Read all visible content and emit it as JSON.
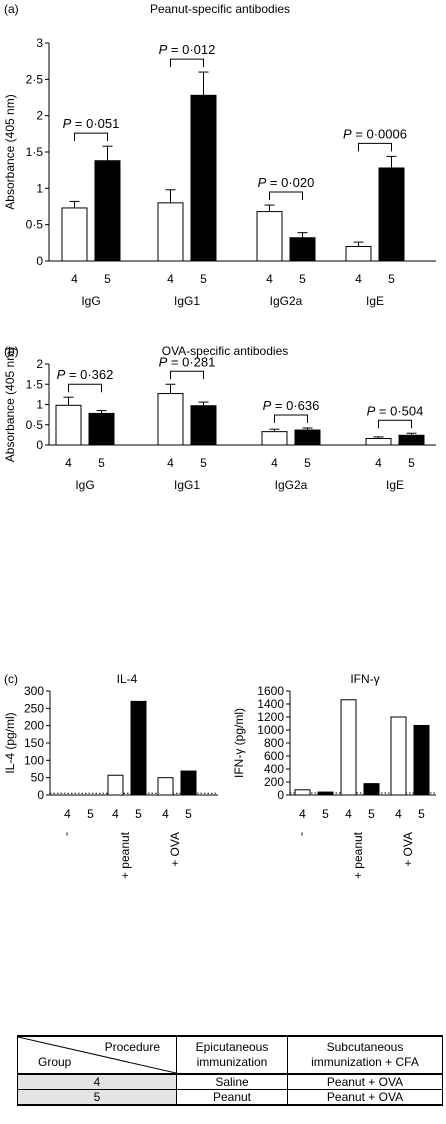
{
  "chart_data": [
    {
      "panel_label": "(a)",
      "type": "bar",
      "title": "Peanut-specific antibodies",
      "ylabel": "Absorbance (405 nm)",
      "ylim": [
        0,
        3
      ],
      "yticks": [
        "0",
        "0·5",
        "1",
        "1·5",
        "2",
        "2·5",
        "3"
      ],
      "groups": [
        {
          "label": "IgG",
          "values": [
            0.73,
            1.38
          ],
          "errors": [
            0.09,
            0.2
          ],
          "categories": [
            "4",
            "5"
          ],
          "p": "P = 0·051"
        },
        {
          "label": "IgG1",
          "values": [
            0.8,
            2.28
          ],
          "errors": [
            0.18,
            0.32
          ],
          "categories": [
            "4",
            "5"
          ],
          "p": "P = 0·012"
        },
        {
          "label": "IgG2a",
          "values": [
            0.68,
            0.32
          ],
          "errors": [
            0.09,
            0.07
          ],
          "categories": [
            "4",
            "5"
          ],
          "p": "P = 0·020"
        },
        {
          "label": "IgE",
          "values": [
            0.2,
            1.28
          ],
          "errors": [
            0.06,
            0.16
          ],
          "categories": [
            "4",
            "5"
          ],
          "p": "P = 0·0006"
        }
      ],
      "colors": [
        "#ffffff",
        "#000000"
      ]
    },
    {
      "panel_label": "(b)",
      "type": "bar",
      "title": "OVA-specific antibodies",
      "ylabel": "Absorbance (405 nm)",
      "ylim": [
        0,
        2
      ],
      "yticks": [
        "0",
        "0·5",
        "1",
        "1·5",
        "2"
      ],
      "groups": [
        {
          "label": "IgG",
          "values": [
            0.98,
            0.78
          ],
          "errors": [
            0.2,
            0.07
          ],
          "categories": [
            "4",
            "5"
          ],
          "p": "P = 0·362"
        },
        {
          "label": "IgG1",
          "values": [
            1.27,
            0.97
          ],
          "errors": [
            0.23,
            0.09
          ],
          "categories": [
            "4",
            "5"
          ],
          "p": "P = 0·281"
        },
        {
          "label": "IgG2a",
          "values": [
            0.33,
            0.37
          ],
          "errors": [
            0.06,
            0.05
          ],
          "categories": [
            "4",
            "5"
          ],
          "p": "P = 0·636"
        },
        {
          "label": "IgE",
          "values": [
            0.16,
            0.24
          ],
          "errors": [
            0.04,
            0.05
          ],
          "categories": [
            "4",
            "5"
          ],
          "p": "P = 0·504"
        }
      ],
      "colors": [
        "#ffffff",
        "#000000"
      ]
    },
    {
      "panel_label": "(c)",
      "type": "bar",
      "title": "IL-4",
      "ylabel": "IL-4 (pg/ml)",
      "ylim": [
        0,
        300
      ],
      "yticks": [
        "0",
        "50",
        "100",
        "150",
        "200",
        "250",
        "300"
      ],
      "baseline": 5,
      "groups": [
        {
          "label": "-",
          "values": [
            0,
            0
          ],
          "categories": [
            "4",
            "5"
          ]
        },
        {
          "label": "+ peanut",
          "values": [
            57,
            270
          ],
          "categories": [
            "4",
            "5"
          ]
        },
        {
          "label": "+ OVA",
          "values": [
            50,
            69
          ],
          "categories": [
            "4",
            "5"
          ]
        }
      ],
      "colors": [
        "#ffffff",
        "#000000"
      ]
    },
    {
      "type": "bar",
      "title": "IFN-γ",
      "ylabel": "IFN-γ (pg/ml)",
      "ylim": [
        0,
        1600
      ],
      "yticks": [
        "0",
        "200",
        "400",
        "600",
        "800",
        "1000",
        "1200",
        "1400",
        "1600"
      ],
      "baseline": 30,
      "groups": [
        {
          "label": "-",
          "values": [
            80,
            45
          ],
          "categories": [
            "4",
            "5"
          ]
        },
        {
          "label": "+ peanut",
          "values": [
            1465,
            175
          ],
          "categories": [
            "4",
            "5"
          ]
        },
        {
          "label": "+ OVA",
          "values": [
            1200,
            1070
          ],
          "categories": [
            "4",
            "5"
          ]
        }
      ],
      "colors": [
        "#ffffff",
        "#000000"
      ]
    }
  ],
  "table": {
    "corner_top": "Procedure",
    "corner_bottom": "Group",
    "col1_header": "Epicutaneous immunization",
    "col2_header": "Subcutaneous immunization + CFA",
    "rows": [
      {
        "group": "4",
        "epi": "Saline",
        "sub": "Peanut + OVA"
      },
      {
        "group": "5",
        "epi": "Peanut",
        "sub": "Peanut + OVA"
      }
    ]
  }
}
